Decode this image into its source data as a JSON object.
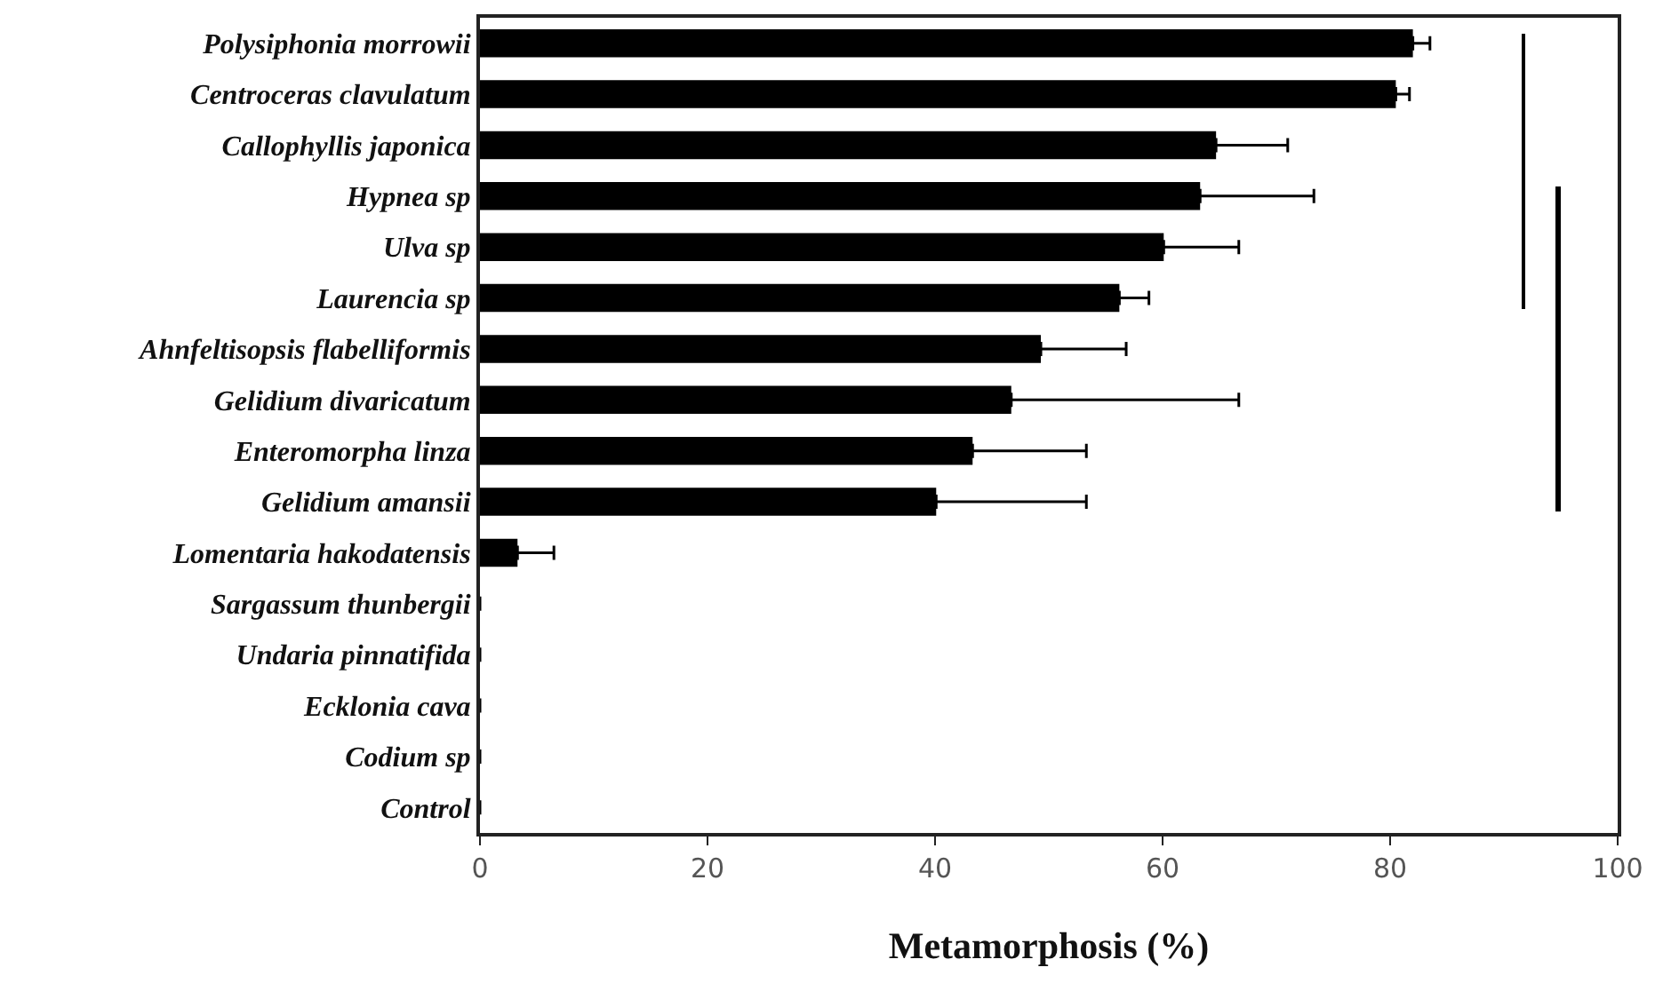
{
  "chart_data": {
    "type": "bar",
    "orientation": "horizontal",
    "xlabel": "Metamorphosis (%)",
    "categories": [
      "Polysiphonia morrowii",
      "Centroceras clavulatum",
      "Callophyllis japonica",
      "Hypnea sp",
      "Ulva sp",
      "Laurencia sp",
      "Ahnfeltisopsis flabelliformis",
      "Gelidium divaricatum",
      "Enteromorpha linza",
      "Gelidium amansii",
      "Lomentaria hakodatensis",
      "Sargassum thunbergii",
      "Undaria pinnatifida",
      "Ecklonia cava",
      "Codium sp",
      "Control"
    ],
    "values": [
      82,
      80.5,
      64.7,
      63.3,
      60.1,
      56.2,
      49.3,
      46.7,
      43.3,
      40.1,
      3.3,
      0,
      0,
      0,
      0,
      0
    ],
    "errors": [
      1.5,
      1.2,
      6.3,
      10,
      6.6,
      2.6,
      7.5,
      20,
      10,
      13.2,
      3.2,
      null,
      null,
      null,
      null,
      null
    ],
    "color": "#000000",
    "xlim": [
      0,
      100
    ],
    "xticks": [
      0,
      20,
      40,
      60,
      80,
      100
    ],
    "grid": false
  }
}
